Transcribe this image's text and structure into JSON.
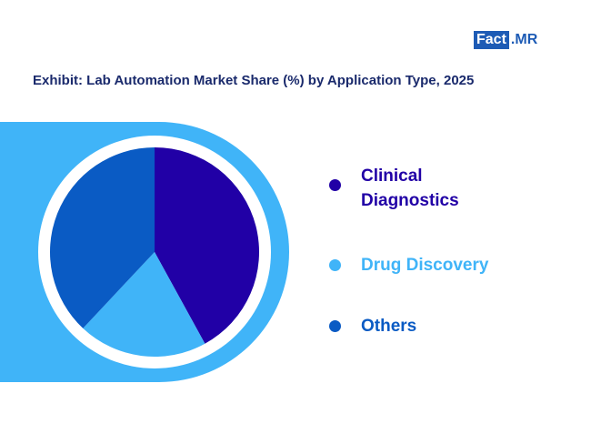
{
  "logo": {
    "box_text": "Fact",
    "dot": ".",
    "rest_text": "MR",
    "color": "#1d5bb5"
  },
  "title": "Exhibit: Lab Automation Market Share (%) by Application Type, 2025",
  "chart_data": {
    "type": "pie",
    "title": "Exhibit: Lab Automation Market Share (%) by Application Type, 2025",
    "legend_position": "right",
    "slices": [
      {
        "label": "Clinical Diagnostics",
        "value": 42,
        "color": "#2100a6"
      },
      {
        "label": "Drug Discovery",
        "value": 20,
        "color": "#40b4f8"
      },
      {
        "label": "Others",
        "value": 38,
        "color": "#0a5bc4"
      }
    ]
  },
  "colors": {
    "band": "#40b4f8",
    "title": "#1a2a6c"
  }
}
